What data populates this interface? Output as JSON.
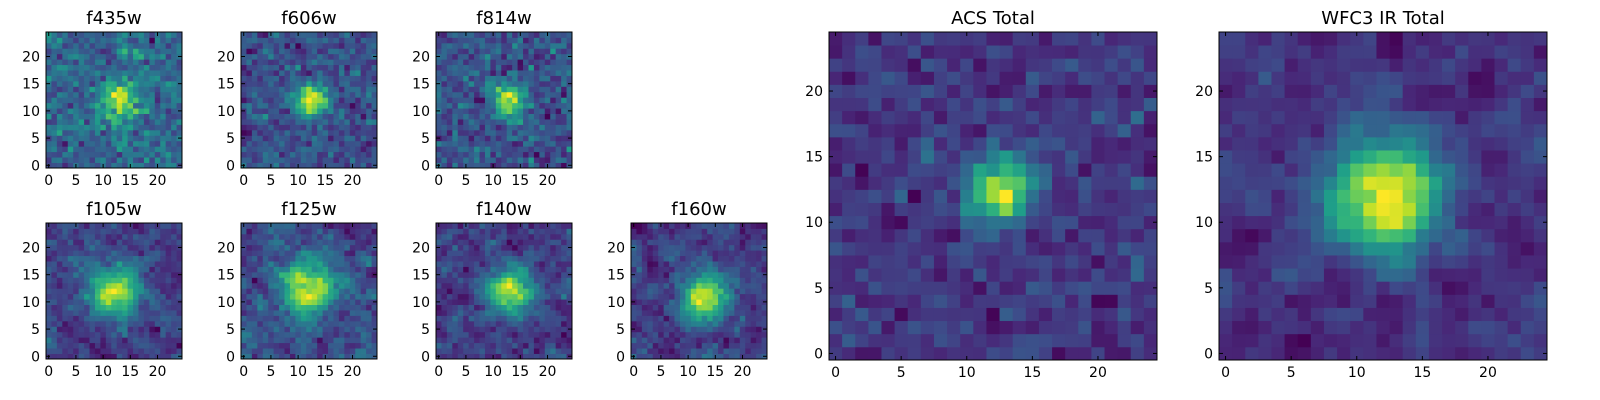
{
  "chart_data": [
    {
      "type": "heatmap",
      "title": "f435w",
      "grid": [
        25,
        25
      ],
      "xlim": [
        0,
        24
      ],
      "ylim": [
        0,
        24
      ],
      "xticks": [
        "0",
        "5",
        "10",
        "15",
        "20"
      ],
      "yticks": [
        "0",
        "5",
        "10",
        "15",
        "20"
      ],
      "colormap": "viridis",
      "smoothness": 0.15,
      "blob": {
        "x": 13,
        "y": 12,
        "sigma": 2.5,
        "amp": 0.35
      },
      "noise": 0.45,
      "seed": 11
    },
    {
      "type": "heatmap",
      "title": "f606w",
      "grid": [
        25,
        25
      ],
      "xlim": [
        0,
        24
      ],
      "ylim": [
        0,
        24
      ],
      "xticks": [
        "0",
        "5",
        "10",
        "15",
        "20"
      ],
      "yticks": [
        "0",
        "5",
        "10",
        "15",
        "20"
      ],
      "colormap": "viridis",
      "smoothness": 0.15,
      "blob": {
        "x": 12.5,
        "y": 12,
        "sigma": 2.0,
        "amp": 0.55
      },
      "noise": 0.4,
      "seed": 23
    },
    {
      "type": "heatmap",
      "title": "f814w",
      "grid": [
        25,
        25
      ],
      "xlim": [
        0,
        24
      ],
      "ylim": [
        0,
        24
      ],
      "xticks": [
        "0",
        "5",
        "10",
        "15",
        "20"
      ],
      "yticks": [
        "0",
        "5",
        "10",
        "15",
        "20"
      ],
      "colormap": "viridis",
      "smoothness": 0.15,
      "blob": {
        "x": 13,
        "y": 12,
        "sigma": 2.0,
        "amp": 0.5
      },
      "noise": 0.42,
      "seed": 37
    },
    {
      "type": "heatmap",
      "title": "f105w",
      "grid": [
        25,
        25
      ],
      "xlim": [
        0,
        24
      ],
      "ylim": [
        0,
        24
      ],
      "xticks": [
        "0",
        "5",
        "10",
        "15",
        "20"
      ],
      "yticks": [
        "0",
        "5",
        "10",
        "15",
        "20"
      ],
      "colormap": "viridis",
      "smoothness": 0.4,
      "blob": {
        "x": 12,
        "y": 12,
        "sigma": 3.5,
        "amp": 0.5
      },
      "noise": 0.32,
      "seed": 41
    },
    {
      "type": "heatmap",
      "title": "f125w",
      "grid": [
        25,
        25
      ],
      "xlim": [
        0,
        24
      ],
      "ylim": [
        0,
        24
      ],
      "xticks": [
        "0",
        "5",
        "10",
        "15",
        "20"
      ],
      "yticks": [
        "0",
        "5",
        "10",
        "15",
        "20"
      ],
      "colormap": "viridis",
      "smoothness": 0.4,
      "blob": {
        "x": 12,
        "y": 12,
        "sigma": 3.5,
        "amp": 0.5
      },
      "noise": 0.34,
      "seed": 53
    },
    {
      "type": "heatmap",
      "title": "f140w",
      "grid": [
        25,
        25
      ],
      "xlim": [
        0,
        24
      ],
      "ylim": [
        0,
        24
      ],
      "xticks": [
        "0",
        "5",
        "10",
        "15",
        "20"
      ],
      "yticks": [
        "0",
        "5",
        "10",
        "15",
        "20"
      ],
      "colormap": "viridis",
      "smoothness": 0.4,
      "blob": {
        "x": 13,
        "y": 12,
        "sigma": 3.0,
        "amp": 0.55
      },
      "noise": 0.32,
      "seed": 67
    },
    {
      "type": "heatmap",
      "title": "f160w",
      "grid": [
        25,
        25
      ],
      "xlim": [
        0,
        24
      ],
      "ylim": [
        0,
        24
      ],
      "xticks": [
        "0",
        "5",
        "10",
        "15",
        "20"
      ],
      "yticks": [
        "0",
        "5",
        "10",
        "15",
        "20"
      ],
      "colormap": "viridis",
      "smoothness": 0.4,
      "blob": {
        "x": 13,
        "y": 11,
        "sigma": 3.0,
        "amp": 0.6
      },
      "noise": 0.3,
      "seed": 79
    },
    {
      "type": "heatmap",
      "title": "ACS Total",
      "grid": [
        25,
        25
      ],
      "xlim": [
        0,
        24
      ],
      "ylim": [
        0,
        24
      ],
      "xticks": [
        "0",
        "5",
        "10",
        "15",
        "20"
      ],
      "yticks": [
        "0",
        "5",
        "10",
        "15",
        "20"
      ],
      "colormap": "viridis",
      "smoothness": 0.2,
      "blob": {
        "x": 12.5,
        "y": 12.5,
        "sigma": 1.8,
        "amp": 0.6
      },
      "noise": 0.3,
      "seed": 97
    },
    {
      "type": "heatmap",
      "title": "WFC3 IR Total",
      "grid": [
        25,
        25
      ],
      "xlim": [
        0,
        24
      ],
      "ylim": [
        0,
        24
      ],
      "xticks": [
        "0",
        "5",
        "10",
        "15",
        "20"
      ],
      "yticks": [
        "0",
        "5",
        "10",
        "15",
        "20"
      ],
      "colormap": "viridis",
      "smoothness": 0.5,
      "blob": {
        "x": 12,
        "y": 12,
        "sigma": 3.0,
        "amp": 0.6
      },
      "noise": 0.22,
      "seed": 113
    }
  ],
  "colors": {
    "viridis_dark": "#440154",
    "viridis_mid": "#21918c",
    "viridis_bright": "#fde725"
  }
}
